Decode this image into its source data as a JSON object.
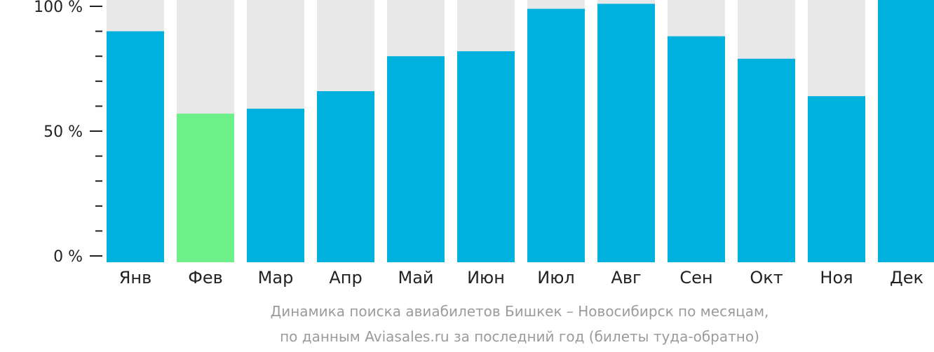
{
  "colors": {
    "bar": "#00b1dd",
    "highlight_bar": "#6df08a",
    "track": "#e8e8e8",
    "axis": "#222222",
    "caption": "#9b9b9b"
  },
  "chart_data": {
    "type": "bar",
    "categories": [
      "Янв",
      "Фев",
      "Мар",
      "Апр",
      "Май",
      "Июн",
      "Июл",
      "Авг",
      "Сен",
      "Окт",
      "Ноя",
      "Дек"
    ],
    "values": [
      90,
      57,
      59,
      66,
      80,
      82,
      99,
      101,
      88,
      79,
      64,
      103
    ],
    "highlight_index": 1,
    "ylim": [
      0,
      100
    ],
    "yticks": [
      {
        "value": 100,
        "label": "100 %"
      },
      {
        "value": 50,
        "label": "50 %"
      },
      {
        "value": 0,
        "label": "0 %"
      }
    ],
    "caption_lines": [
      "Динамика поиска авиабилетов Бишкек – Новосибирск по месяцам,",
      "по данным Aviasales.ru за последний год (билеты туда-обратно)"
    ],
    "grid": false,
    "legend": "none"
  }
}
